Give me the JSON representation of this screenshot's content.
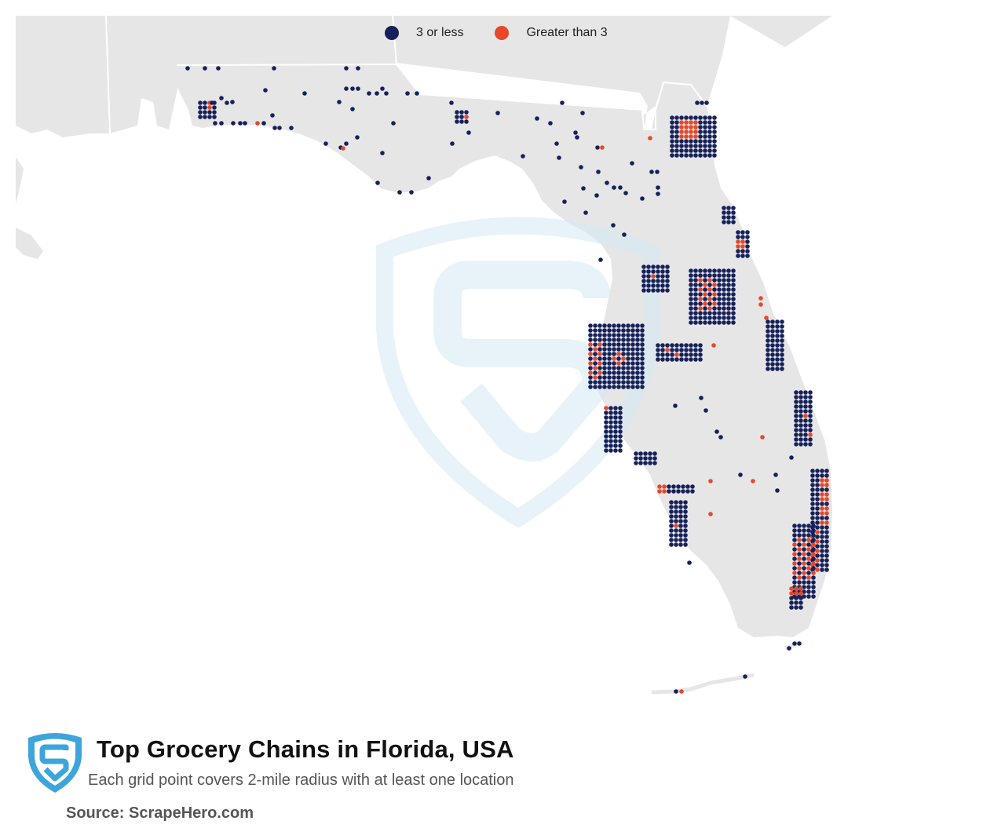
{
  "legend": {
    "items": [
      {
        "label": "3 or less",
        "color": "#16215a"
      },
      {
        "label": "Greater than 3",
        "color": "#e8472a"
      }
    ]
  },
  "map": {
    "land_color": "#e6e6e6",
    "border_color": "#ffffff",
    "watermark_color": "#d6eaf5"
  },
  "title": "Top Grocery Chains in Florida, USA",
  "subtitle": "Each grid point covers 2-mile radius with at least one location",
  "source": "Source: ScrapeHero.com",
  "brand": {
    "logo_icon": "scrapehero-shield-icon",
    "logo_color": "#3ea4dc"
  }
}
